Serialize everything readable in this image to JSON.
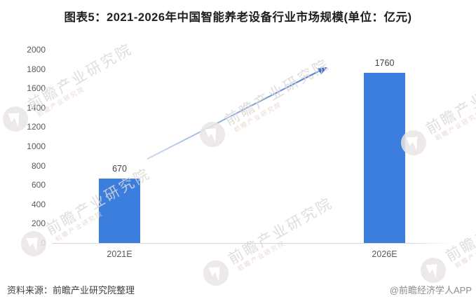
{
  "title": "图表5：2021-2026年中国智能养老设备行业市场规模(单位：亿元)",
  "footer": {
    "source": "资料来源：前瞻产业研究院整理",
    "credit": "@前瞻经济学人APP"
  },
  "watermark": {
    "text": "前瞻产业研究院"
  },
  "chart_data": {
    "type": "bar",
    "title": "图表5：2021-2026年中国智能养老设备行业市场规模(单位：亿元)",
    "unit": "亿元",
    "categories": [
      "2021E",
      "2026E"
    ],
    "values": [
      670,
      1760
    ],
    "value_labels": [
      "670",
      "1760"
    ],
    "ylim": [
      0,
      2000
    ],
    "yticks": [
      0,
      200,
      400,
      600,
      800,
      1000,
      1200,
      1400,
      1600,
      1800,
      2000
    ],
    "grid": false,
    "legend": null,
    "bar_color": "#3b7edd",
    "annotation": {
      "type": "growth-arrow",
      "description": "arrow from 2021E bar toward 2026E bar",
      "color_start": "#ccd9ec",
      "color_end": "#4a7cce",
      "head_color": "#3f6fc6"
    }
  }
}
